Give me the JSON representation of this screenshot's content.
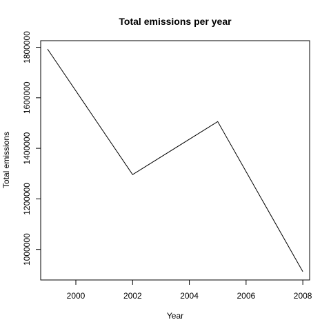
{
  "chart_data": {
    "type": "line",
    "title": "Total emissions per year",
    "xlabel": "Year",
    "ylabel": "Total emissions",
    "x": [
      1999,
      2002,
      2005,
      2008
    ],
    "series": [
      {
        "values": [
          1793000,
          1296000,
          1506000,
          912000
        ]
      }
    ],
    "xlim": [
      1998.76,
      2008.24
    ],
    "ylim": [
      879000,
      1826000
    ],
    "xticks": [
      2000,
      2002,
      2004,
      2006,
      2008
    ],
    "xtick_labels": [
      "2000",
      "2002",
      "2004",
      "2006",
      "2008"
    ],
    "yticks": [
      1000000,
      1200000,
      1400000,
      1600000,
      1800000
    ],
    "ytick_labels": [
      "1000000",
      "1200000",
      "1400000",
      "1600000",
      "1800000"
    ],
    "grid": false,
    "line_color": "#000000"
  }
}
